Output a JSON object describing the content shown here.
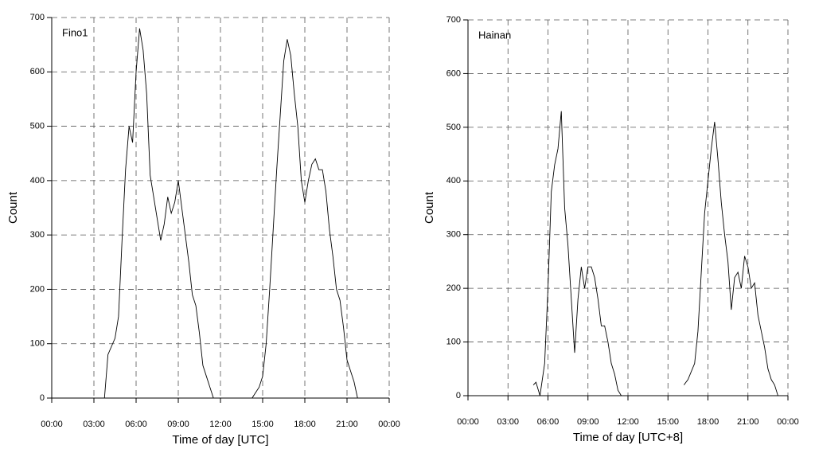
{
  "chart_data": [
    {
      "type": "line",
      "label": "Fino1",
      "xlabel": "Time of day  [UTC]",
      "ylabel": "Count",
      "xlim": [
        0,
        24
      ],
      "ylim": [
        0,
        700
      ],
      "grid": true,
      "xticks": [
        {
          "value": 0,
          "label": "00:00"
        },
        {
          "value": 3,
          "label": "03:00"
        },
        {
          "value": 6,
          "label": "06:00"
        },
        {
          "value": 9,
          "label": "09:00"
        },
        {
          "value": 12,
          "label": "12:00"
        },
        {
          "value": 15,
          "label": "15:00"
        },
        {
          "value": 18,
          "label": "18:00"
        },
        {
          "value": 21,
          "label": "21:00"
        },
        {
          "value": 24,
          "label": "00:00"
        }
      ],
      "yticks": [
        0,
        100,
        200,
        300,
        400,
        500,
        600,
        700
      ],
      "x": [
        0,
        3.75,
        4,
        4.25,
        4.5,
        4.75,
        5,
        5.25,
        5.5,
        5.75,
        6,
        6.25,
        6.5,
        6.75,
        7,
        7.25,
        7.5,
        7.75,
        8,
        8.25,
        8.5,
        8.75,
        9,
        9.25,
        9.5,
        9.75,
        10,
        10.25,
        10.5,
        10.75,
        11,
        11.25,
        11.5,
        14.25,
        14.5,
        14.75,
        15,
        15.25,
        15.5,
        15.75,
        16,
        16.25,
        16.5,
        16.75,
        17,
        17.25,
        17.5,
        17.75,
        18,
        18.25,
        18.5,
        18.75,
        19,
        19.25,
        19.5,
        19.75,
        20,
        20.25,
        20.5,
        20.75,
        21,
        21.25,
        21.5,
        21.75,
        24
      ],
      "series": [
        {
          "color": "#000000",
          "values": [
            0,
            0,
            80,
            95,
            110,
            150,
            290,
            420,
            500,
            470,
            600,
            680,
            640,
            560,
            410,
            370,
            330,
            290,
            320,
            370,
            340,
            360,
            400,
            350,
            300,
            250,
            190,
            170,
            120,
            60,
            40,
            20,
            0,
            0,
            10,
            20,
            40,
            100,
            200,
            310,
            420,
            520,
            620,
            660,
            630,
            560,
            500,
            400,
            360,
            400,
            430,
            440,
            420,
            420,
            380,
            310,
            260,
            200,
            180,
            130,
            70,
            50,
            30,
            0,
            0
          ]
        }
      ]
    },
    {
      "type": "line",
      "label": "Hainan",
      "xlabel": "Time of day  [UTC+8]",
      "ylabel": "Count",
      "xlim": [
        0,
        24
      ],
      "ylim": [
        0,
        700
      ],
      "grid": true,
      "xticks": [
        {
          "value": 0,
          "label": "00:00"
        },
        {
          "value": 3,
          "label": "03:00"
        },
        {
          "value": 6,
          "label": "06:00"
        },
        {
          "value": 9,
          "label": "09:00"
        },
        {
          "value": 12,
          "label": "12:00"
        },
        {
          "value": 15,
          "label": "15:00"
        },
        {
          "value": 18,
          "label": "18:00"
        },
        {
          "value": 21,
          "label": "21:00"
        },
        {
          "value": 24,
          "label": "00:00"
        }
      ],
      "yticks": [
        0,
        100,
        200,
        300,
        400,
        500,
        600,
        700
      ],
      "x": [
        4.9,
        5.1,
        5.4,
        5.75,
        6,
        6.25,
        6.5,
        6.75,
        7,
        7.25,
        7.5,
        7.75,
        8,
        8.25,
        8.5,
        8.75,
        9,
        9.25,
        9.5,
        9.75,
        10,
        10.25,
        10.5,
        10.75,
        11,
        11.25,
        11.5,
        14,
        16.2,
        16.5,
        17,
        17.25,
        17.5,
        17.75,
        18,
        18.25,
        18.5,
        18.75,
        19,
        19.25,
        19.5,
        19.75,
        20,
        20.25,
        20.5,
        20.75,
        21,
        21.25,
        21.5,
        21.75,
        22,
        22.25,
        22.5,
        22.75,
        23,
        23.25
      ],
      "series": [
        {
          "color": "#000000",
          "values": [
            20,
            25,
            0,
            60,
            200,
            380,
            430,
            460,
            530,
            350,
            280,
            180,
            80,
            180,
            240,
            200,
            240,
            240,
            220,
            180,
            130,
            130,
            100,
            60,
            40,
            10,
            0,
            null,
            20,
            30,
            60,
            120,
            230,
            340,
            400,
            460,
            510,
            440,
            360,
            300,
            250,
            160,
            220,
            230,
            200,
            260,
            240,
            200,
            210,
            150,
            120,
            90,
            50,
            30,
            20,
            0
          ]
        }
      ]
    }
  ]
}
